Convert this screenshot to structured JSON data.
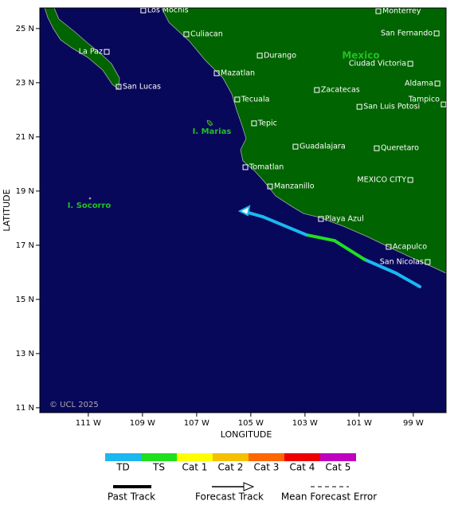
{
  "map": {
    "xlabel": "LONGITUDE",
    "ylabel": "LATITUDE",
    "xlim": [
      -112.79,
      -97.79
    ],
    "ylim": [
      10.82,
      25.76
    ],
    "xticks": [
      {
        "value": -111,
        "label": "111 W"
      },
      {
        "value": -109,
        "label": "109 W"
      },
      {
        "value": -107,
        "label": "107 W"
      },
      {
        "value": -105,
        "label": "105 W"
      },
      {
        "value": -103,
        "label": "103 W"
      },
      {
        "value": -101,
        "label": "101 W"
      },
      {
        "value": -99,
        "label": "99 W"
      }
    ],
    "yticks": [
      {
        "value": 11,
        "label": "11 N"
      },
      {
        "value": 13,
        "label": "13 N"
      },
      {
        "value": 15,
        "label": "15 N"
      },
      {
        "value": 17,
        "label": "17 N"
      },
      {
        "value": 19,
        "label": "19 N"
      },
      {
        "value": 21,
        "label": "21 N"
      },
      {
        "value": 23,
        "label": "23 N"
      },
      {
        "value": 25,
        "label": "25 N"
      }
    ],
    "regions": [
      "Mexico",
      "I. Marias",
      "I. Socorro"
    ],
    "copyright": "© UCL 2025",
    "cities": [
      {
        "name": "Los Mochis",
        "lon": -108.97,
        "lat": 25.67
      },
      {
        "name": "Culiacan",
        "lon": -107.38,
        "lat": 24.79
      },
      {
        "name": "La Paz",
        "lon": -110.32,
        "lat": 24.14
      },
      {
        "name": "Durango",
        "lon": -104.67,
        "lat": 24.0
      },
      {
        "name": "Monterrey",
        "lon": -100.29,
        "lat": 25.64
      },
      {
        "name": "San Fernando",
        "lon": -98.14,
        "lat": 24.82
      },
      {
        "name": "Ciudad Victoria",
        "lon": -99.11,
        "lat": 23.7
      },
      {
        "name": "Mazatlan",
        "lon": -106.26,
        "lat": 23.35
      },
      {
        "name": "San Lucas",
        "lon": -109.88,
        "lat": 22.85
      },
      {
        "name": "Aldama",
        "lon": -98.11,
        "lat": 22.97
      },
      {
        "name": "Zacatecas",
        "lon": -102.56,
        "lat": 22.73
      },
      {
        "name": "Tampico",
        "lon": -97.88,
        "lat": 22.2
      },
      {
        "name": "Tecuala",
        "lon": -105.5,
        "lat": 22.38
      },
      {
        "name": "San Luis Potosi",
        "lon": -100.99,
        "lat": 22.11
      },
      {
        "name": "Tepic",
        "lon": -104.88,
        "lat": 21.5
      },
      {
        "name": "Guadalajara",
        "lon": -103.35,
        "lat": 20.64
      },
      {
        "name": "Queretaro",
        "lon": -100.35,
        "lat": 20.58
      },
      {
        "name": "Tomatlan",
        "lon": -105.2,
        "lat": 19.88
      },
      {
        "name": "MEXICO CITY",
        "lon": -99.11,
        "lat": 19.41
      },
      {
        "name": "Manzanillo",
        "lon": -104.29,
        "lat": 19.17
      },
      {
        "name": "Playa Azul",
        "lon": -102.41,
        "lat": 17.97
      },
      {
        "name": "Acapulco",
        "lon": -99.91,
        "lat": 16.94
      },
      {
        "name": "San Nicolas",
        "lon": -98.47,
        "lat": 16.38
      }
    ],
    "track": [
      {
        "lon": -98.76,
        "lat": 15.47,
        "cat": "TD"
      },
      {
        "lon": -99.64,
        "lat": 15.97,
        "cat": "TD"
      },
      {
        "lon": -100.79,
        "lat": 16.47,
        "cat": "TD"
      },
      {
        "lon": -101.91,
        "lat": 17.17,
        "cat": "TS"
      },
      {
        "lon": -102.94,
        "lat": 17.38,
        "cat": "TS"
      },
      {
        "lon": -104.55,
        "lat": 18.05,
        "cat": "TD"
      },
      {
        "lon": -105.29,
        "lat": 18.26,
        "cat": "TD"
      }
    ],
    "legend": {
      "categories": [
        {
          "name": "TD",
          "color": "#1ab8f0"
        },
        {
          "name": "TS",
          "color": "#1fe01f"
        },
        {
          "name": "Cat 1",
          "color": "#ffff00"
        },
        {
          "name": "Cat 2",
          "color": "#f5c000"
        },
        {
          "name": "Cat 3",
          "color": "#ff6600"
        },
        {
          "name": "Cat 4",
          "color": "#ee0000"
        },
        {
          "name": "Cat 5",
          "color": "#c000c0"
        }
      ],
      "lines": [
        "Past Track",
        "Forecast Track",
        "Mean Forecast Error"
      ]
    }
  }
}
